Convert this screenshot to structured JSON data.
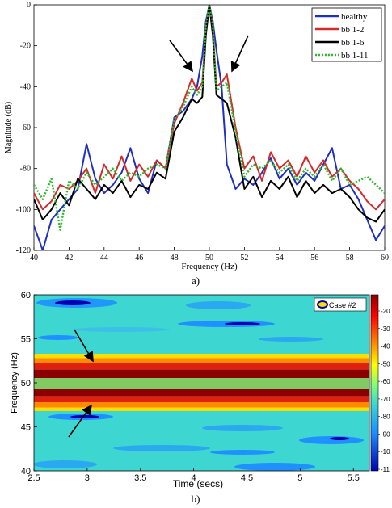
{
  "chart_data": [
    {
      "type": "line",
      "panel_caption": "a)",
      "xlabel": "Frequency (Hz)",
      "ylabel": "Magnitude (dB)",
      "xlim": [
        40,
        60
      ],
      "ylim": [
        -120,
        0
      ],
      "x_ticks": [
        "40",
        "42",
        "44",
        "46",
        "48",
        "50",
        "52",
        "54",
        "56",
        "58",
        "60"
      ],
      "y_ticks": [
        "0",
        "-20",
        "-40",
        "-60",
        "-80",
        "-100",
        "-120"
      ],
      "legend_position": "top-right",
      "series": [
        {
          "name": "healthy",
          "color": "#1f2fbf",
          "dash": "solid",
          "x": [
            40,
            40.5,
            41,
            41.5,
            42,
            42.5,
            43,
            43.5,
            44,
            44.5,
            45,
            45.5,
            46,
            46.5,
            47,
            47.5,
            48,
            48.5,
            49,
            49.3,
            49.6,
            49.8,
            50,
            50.2,
            50.4,
            50.7,
            51,
            51.5,
            52,
            52.5,
            53,
            53.5,
            54,
            54.5,
            55,
            55.5,
            56,
            56.5,
            57,
            57.5,
            58,
            58.5,
            59,
            59.5,
            60
          ],
          "y": [
            -108,
            -120,
            -105,
            -100,
            -95,
            -90,
            -68,
            -85,
            -92,
            -88,
            -82,
            -70,
            -85,
            -92,
            -76,
            -80,
            -55,
            -52,
            -46,
            -40,
            -25,
            -8,
            0,
            -8,
            -22,
            -40,
            -78,
            -90,
            -85,
            -88,
            -82,
            -75,
            -85,
            -80,
            -88,
            -82,
            -86,
            -78,
            -70,
            -90,
            -88,
            -95,
            -105,
            -115,
            -108
          ]
        },
        {
          "name": "bb 1-2",
          "color": "#d42a2a",
          "dash": "solid",
          "x": [
            40,
            40.5,
            41,
            41.5,
            42,
            42.5,
            43,
            43.5,
            44,
            44.5,
            45,
            45.5,
            46,
            46.5,
            47,
            47.5,
            48,
            48.5,
            49,
            49.3,
            49.6,
            49.8,
            50,
            50.2,
            50.4,
            50.7,
            51,
            51.5,
            52,
            52.5,
            53,
            53.5,
            54,
            54.5,
            55,
            55.5,
            56,
            56.5,
            57,
            57.5,
            58,
            58.5,
            59,
            59.5,
            60
          ],
          "y": [
            -92,
            -100,
            -96,
            -88,
            -90,
            -86,
            -80,
            -92,
            -78,
            -85,
            -74,
            -86,
            -78,
            -84,
            -76,
            -80,
            -58,
            -48,
            -36,
            -42,
            -38,
            -12,
            0,
            -12,
            -40,
            -38,
            -34,
            -60,
            -80,
            -74,
            -86,
            -72,
            -80,
            -76,
            -84,
            -74,
            -82,
            -76,
            -84,
            -80,
            -86,
            -90,
            -96,
            -100,
            -95
          ]
        },
        {
          "name": "bb 1-6",
          "color": "#000000",
          "dash": "solid",
          "x": [
            40,
            40.5,
            41,
            41.5,
            42,
            42.5,
            43,
            43.5,
            44,
            44.5,
            45,
            45.5,
            46,
            46.5,
            47,
            47.5,
            48,
            48.5,
            49,
            49.3,
            49.6,
            49.8,
            50,
            50.2,
            50.4,
            50.7,
            51,
            51.5,
            52,
            52.5,
            53,
            53.5,
            54,
            54.5,
            55,
            55.5,
            56,
            56.5,
            57,
            57.5,
            58,
            58.5,
            59,
            59.5,
            60
          ],
          "y": [
            -95,
            -105,
            -100,
            -92,
            -98,
            -85,
            -90,
            -95,
            -88,
            -92,
            -86,
            -94,
            -88,
            -90,
            -82,
            -85,
            -62,
            -55,
            -46,
            -48,
            -45,
            -15,
            0,
            -15,
            -44,
            -46,
            -48,
            -65,
            -90,
            -84,
            -94,
            -86,
            -90,
            -84,
            -94,
            -86,
            -92,
            -88,
            -92,
            -90,
            -94,
            -100,
            -104,
            -106,
            -100
          ]
        },
        {
          "name": "bb 1-11",
          "color": "#2db82d",
          "dash": "dotted",
          "x": [
            40,
            40.5,
            41,
            41.5,
            42,
            42.5,
            43,
            43.5,
            44,
            44.5,
            45,
            45.5,
            46,
            46.5,
            47,
            47.5,
            48,
            48.5,
            49,
            49.3,
            49.6,
            49.8,
            50,
            50.2,
            50.4,
            50.7,
            51,
            51.5,
            52,
            52.5,
            53,
            53.5,
            54,
            54.5,
            55,
            55.5,
            56,
            56.5,
            57,
            57.5,
            58,
            58.5,
            59,
            59.5,
            60
          ],
          "y": [
            -88,
            -95,
            -85,
            -110,
            -86,
            -90,
            -82,
            -88,
            -84,
            -80,
            -86,
            -82,
            -84,
            -80,
            -78,
            -80,
            -56,
            -50,
            -40,
            -44,
            -40,
            -10,
            0,
            -10,
            -42,
            -40,
            -38,
            -62,
            -84,
            -78,
            -80,
            -76,
            -82,
            -78,
            -86,
            -80,
            -84,
            -78,
            -86,
            -80,
            -88,
            -86,
            -84,
            -88,
            -92
          ]
        }
      ]
    },
    {
      "type": "heatmap",
      "panel_caption": "b)",
      "xlabel": "Time (secs)",
      "ylabel": "Frequency (Hz)",
      "xlim": [
        2.5,
        5.65
      ],
      "ylim": [
        40,
        60
      ],
      "x_ticks": [
        "2.5",
        "3",
        "3.5",
        "4",
        "4.5",
        "5",
        "5.5"
      ],
      "y_ticks": [
        "60",
        "55",
        "50",
        "45",
        "40"
      ],
      "colorbar_ticks": [
        "-20",
        "-30",
        "-40",
        "-50",
        "-60",
        "-70",
        "-80",
        "-90",
        "-10",
        "-11"
      ],
      "legend_label": "Case #2",
      "legend_position": "top-right",
      "bands": [
        {
          "freq_from": 48.5,
          "freq_to": 51.5,
          "level": -10,
          "color": "#8b0000"
        },
        {
          "freq_from": 51.5,
          "freq_to": 52.2,
          "level": -25,
          "color": "#e0200f"
        },
        {
          "freq_from": 52.2,
          "freq_to": 52.8,
          "level": -40,
          "color": "#ff8a00"
        },
        {
          "freq_from": 52.8,
          "freq_to": 53.3,
          "level": -50,
          "color": "#ffdd00"
        },
        {
          "freq_from": 47.8,
          "freq_to": 48.5,
          "level": -25,
          "color": "#e0200f"
        },
        {
          "freq_from": 47.2,
          "freq_to": 47.8,
          "level": -40,
          "color": "#ff8a00"
        },
        {
          "freq_from": 46.8,
          "freq_to": 47.2,
          "level": -50,
          "color": "#ffdd00"
        }
      ],
      "background_level": -70,
      "background_color": "#3dd6d0"
    }
  ],
  "legend_a": [
    "healthy",
    "bb 1-2",
    "bb 1-6",
    "bb 1-11"
  ]
}
